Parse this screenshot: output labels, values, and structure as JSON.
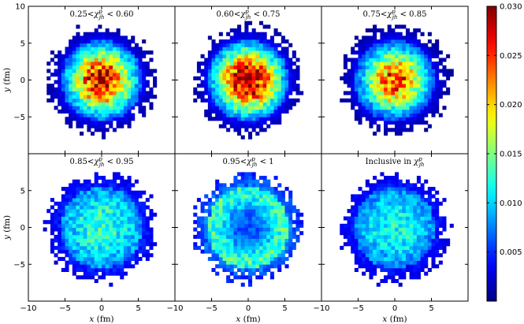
{
  "chart_data": [
    {
      "type": "heatmap",
      "title": "0.25<χ^p_jh < 0.60",
      "profile": "central",
      "peak": 0.028,
      "xlim": [
        -10,
        10
      ],
      "ylim": [
        -10,
        10
      ],
      "xlabel": "",
      "ylabel": "y (fm)",
      "xticks": [],
      "yticks": [
        "10",
        "5",
        "0",
        "−5"
      ]
    },
    {
      "type": "heatmap",
      "title": "0.60<χ^p_jh < 0.75",
      "profile": "central",
      "peak": 0.03,
      "xlim": [
        -10,
        10
      ],
      "ylim": [
        -10,
        10
      ],
      "xlabel": "",
      "ylabel": "",
      "xticks": [],
      "yticks": []
    },
    {
      "type": "heatmap",
      "title": "0.75<χ^p_jh < 0.85",
      "profile": "central",
      "peak": 0.025,
      "xlim": [
        -10,
        10
      ],
      "ylim": [
        -10,
        10
      ],
      "xlabel": "",
      "ylabel": "",
      "xticks": [],
      "yticks": []
    },
    {
      "type": "heatmap",
      "title": "0.85<χ^p_jh < 0.95",
      "profile": "flat",
      "peak": 0.013,
      "xlim": [
        -10,
        10
      ],
      "ylim": [
        -10,
        10
      ],
      "xlabel": "x (fm)",
      "ylabel": "y (fm)",
      "xticks": [
        "−10",
        "−5",
        "0",
        "5"
      ],
      "yticks": [
        "5",
        "0",
        "−5"
      ]
    },
    {
      "type": "heatmap",
      "title": "0.95<χ^p_jh < 1",
      "profile": "ring",
      "peak": 0.013,
      "xlim": [
        -10,
        10
      ],
      "ylim": [
        -10,
        10
      ],
      "xlabel": "x (fm)",
      "ylabel": "",
      "xticks": [
        "−10",
        "−5",
        "0",
        "5"
      ],
      "yticks": []
    },
    {
      "type": "heatmap",
      "title": "Inclusive in χ^p_jh",
      "profile": "flat",
      "peak": 0.012,
      "xlim": [
        -10,
        10
      ],
      "ylim": [
        -10,
        10
      ],
      "xlabel": "x (fm)",
      "ylabel": "",
      "xticks": [
        "−10",
        "−5",
        "0",
        "5"
      ],
      "yticks": []
    }
  ],
  "colorbar": {
    "min": 0.0,
    "max": 0.03,
    "colormap": "jet",
    "ticks": [
      {
        "value": 0.005,
        "label": "0.005"
      },
      {
        "value": 0.01,
        "label": "0.010"
      },
      {
        "value": 0.015,
        "label": "0.015"
      },
      {
        "value": 0.02,
        "label": "0.020"
      },
      {
        "value": 0.025,
        "label": "0.025"
      },
      {
        "value": 0.03,
        "label": "0.030"
      }
    ]
  }
}
